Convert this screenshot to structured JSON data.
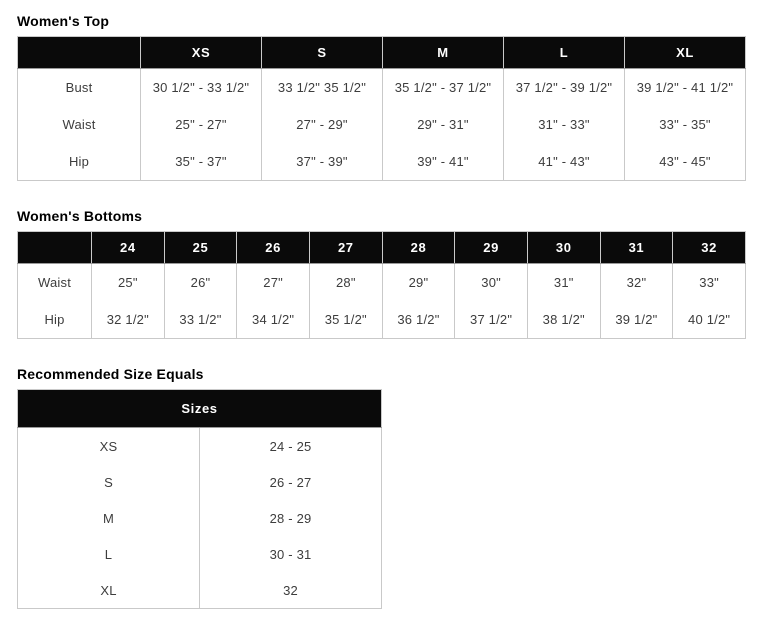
{
  "colors": {
    "header_bg": "#0a0a0a",
    "header_text": "#ffffff",
    "body_text": "#3d3d3d",
    "title_text": "#000000",
    "border": "#c9c9c9",
    "page_bg": "#ffffff"
  },
  "tables": [
    {
      "title": "Women's Top",
      "columns": [
        "",
        "XS",
        "S",
        "M",
        "L",
        "XL"
      ],
      "rows": [
        {
          "label": "Bust",
          "values": [
            "30 1/2\" - 33 1/2\"",
            "33 1/2\" 35 1/2\"",
            "35 1/2\" - 37 1/2\"",
            "37 1/2\" - 39 1/2\"",
            "39 1/2\" - 41 1/2\""
          ]
        },
        {
          "label": "Waist",
          "values": [
            "25\" - 27\"",
            "27\" - 29\"",
            "29\" - 31\"",
            "31\" - 33\"",
            "33\" - 35\""
          ]
        },
        {
          "label": "Hip",
          "values": [
            "35\" - 37\"",
            "37\" - 39\"",
            "39\" - 41\"",
            "41\" - 43\"",
            "43\" - 45\""
          ]
        }
      ]
    },
    {
      "title": "Women's Bottoms",
      "columns": [
        "",
        "24",
        "25",
        "26",
        "27",
        "28",
        "29",
        "30",
        "31",
        "32"
      ],
      "rows": [
        {
          "label": "Waist",
          "values": [
            "25\"",
            "26\"",
            "27\"",
            "28\"",
            "29\"",
            "30\"",
            "31\"",
            "32\"",
            "33\""
          ]
        },
        {
          "label": "Hip",
          "values": [
            "32 1/2\"",
            "33 1/2\"",
            "34 1/2\"",
            "35 1/2\"",
            "36 1/2\"",
            "37 1/2\"",
            "38 1/2\"",
            "39 1/2\"",
            "40 1/2\""
          ]
        }
      ]
    },
    {
      "title": "Recommended Size Equals",
      "header": "Sizes",
      "rows": [
        {
          "label": "XS",
          "value": "24 - 25"
        },
        {
          "label": "S",
          "value": "26 - 27"
        },
        {
          "label": "M",
          "value": "28 - 29"
        },
        {
          "label": "L",
          "value": "30 - 31"
        },
        {
          "label": "XL",
          "value": "32"
        }
      ]
    }
  ]
}
